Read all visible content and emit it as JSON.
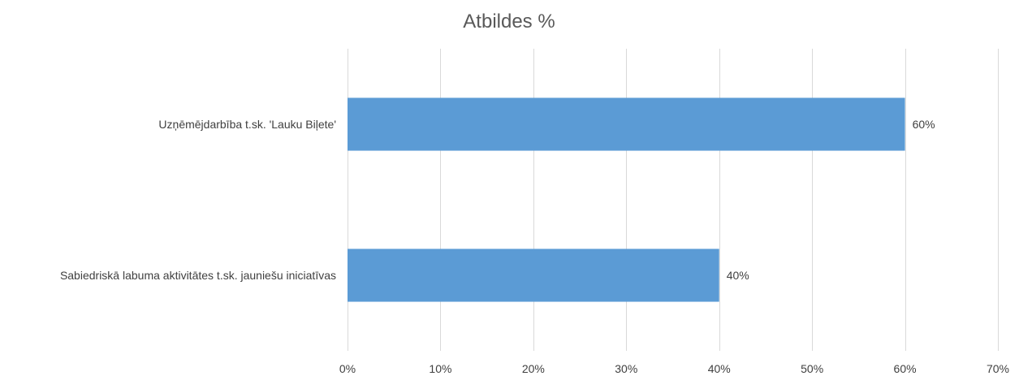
{
  "chart_data": {
    "type": "bar",
    "orientation": "horizontal",
    "title": "Atbildes %",
    "categories": [
      "Uzņēmējdarbība t.sk. 'Lauku Biļete'",
      "Sabiedriskā labuma aktivitātes t.sk. jauniešu iniciatīvas"
    ],
    "values": [
      60,
      40
    ],
    "data_labels": [
      "60%",
      "40%"
    ],
    "xlim": [
      0,
      70
    ],
    "x_ticks": [
      0,
      10,
      20,
      30,
      40,
      50,
      60,
      70
    ],
    "x_tick_labels": [
      "0%",
      "10%",
      "20%",
      "30%",
      "40%",
      "50%",
      "60%",
      "70%"
    ],
    "xlabel": "",
    "ylabel": "",
    "grid": "vertical",
    "legend": "none",
    "bar_color": "#5b9bd5"
  }
}
